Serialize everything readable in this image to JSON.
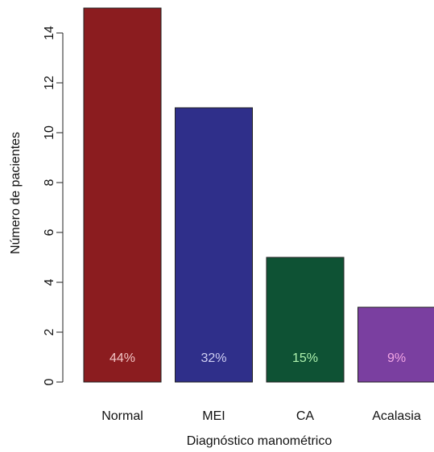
{
  "chart_data": {
    "type": "bar",
    "x_label": "Diagnóstico manométrico",
    "y_label": "Número de pacientes",
    "categories": [
      "Normal",
      "MEI",
      "CA",
      "Acalasia"
    ],
    "values": [
      15,
      11,
      5,
      3
    ],
    "colors": [
      "#8b1c1f",
      "#2f2f8a",
      "#0e5234",
      "#7a3fa0"
    ],
    "percent_labels": [
      "44%",
      "32%",
      "15%",
      "9%"
    ],
    "label_colors": [
      "#f2c4c4",
      "#cfcff2",
      "#aef2ae",
      "#f2a6e4"
    ],
    "ylim": [
      0,
      15
    ],
    "yticks": [
      0,
      2,
      4,
      6,
      8,
      10,
      12,
      14
    ]
  }
}
